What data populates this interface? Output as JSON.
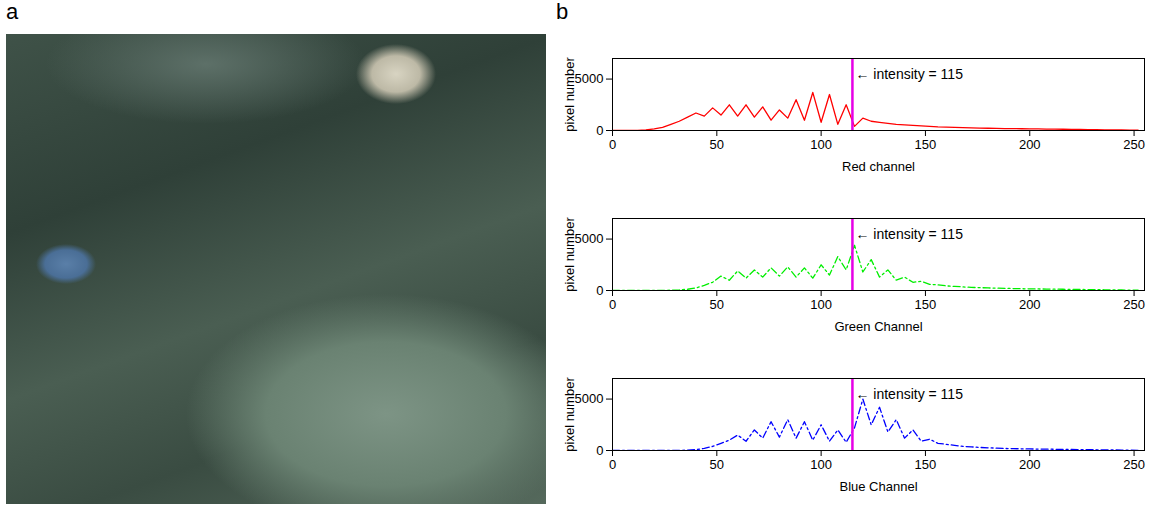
{
  "panel_labels": [
    "a",
    "b"
  ],
  "chart_data": [
    {
      "type": "line",
      "x_label": "Red channel",
      "y_label": "pixel number",
      "xlim": [
        0,
        255
      ],
      "ylim": [
        0,
        7000
      ],
      "xticks": [
        0,
        50,
        100,
        150,
        200,
        250
      ],
      "yticks": [
        0,
        5000
      ],
      "grid": false,
      "x": [
        0,
        4,
        8,
        12,
        16,
        20,
        24,
        28,
        32,
        36,
        40,
        44,
        48,
        52,
        56,
        60,
        64,
        68,
        72,
        76,
        80,
        84,
        88,
        92,
        96,
        100,
        104,
        108,
        112,
        116,
        120,
        124,
        128,
        132,
        136,
        140,
        144,
        148,
        152,
        156,
        160,
        164,
        168,
        172,
        176,
        180,
        184,
        188,
        192,
        196,
        200,
        204,
        208,
        212,
        216,
        220,
        224,
        228,
        232,
        236,
        240,
        244,
        248,
        252
      ],
      "values": [
        0,
        0,
        0,
        20,
        60,
        150,
        300,
        600,
        900,
        1300,
        1700,
        1400,
        2200,
        1500,
        2500,
        1400,
        2500,
        1300,
        2300,
        1000,
        2000,
        1200,
        3000,
        1000,
        3700,
        800,
        3500,
        600,
        2500,
        400,
        1200,
        900,
        800,
        700,
        600,
        550,
        500,
        450,
        400,
        350,
        320,
        300,
        280,
        260,
        240,
        220,
        200,
        190,
        180,
        170,
        160,
        150,
        140,
        130,
        120,
        110,
        100,
        90,
        80,
        70,
        60,
        50,
        40,
        30
      ],
      "color": "#ff0000",
      "line_style": "solid",
      "annotations": [
        {
          "x": 115,
          "text": "← intensity = 115",
          "color": "#e600e6"
        }
      ]
    },
    {
      "type": "line",
      "x_label": "Green Channel",
      "y_label": "pixel number",
      "xlim": [
        0,
        255
      ],
      "ylim": [
        0,
        7000
      ],
      "xticks": [
        0,
        50,
        100,
        150,
        200,
        250
      ],
      "yticks": [
        0,
        5000
      ],
      "grid": false,
      "x": [
        0,
        4,
        8,
        12,
        16,
        20,
        24,
        28,
        32,
        36,
        40,
        44,
        48,
        52,
        56,
        60,
        64,
        68,
        72,
        76,
        80,
        84,
        88,
        92,
        96,
        100,
        104,
        108,
        112,
        116,
        120,
        124,
        128,
        132,
        136,
        140,
        144,
        148,
        152,
        156,
        160,
        164,
        168,
        172,
        176,
        180,
        184,
        188,
        192,
        196,
        200,
        204,
        208,
        212,
        216,
        220,
        224,
        228,
        232,
        236,
        240,
        244,
        248,
        252
      ],
      "values": [
        0,
        0,
        0,
        0,
        0,
        0,
        10,
        30,
        60,
        120,
        250,
        500,
        800,
        1400,
        1000,
        1900,
        1200,
        2000,
        1300,
        2200,
        1400,
        2300,
        1300,
        2200,
        1200,
        2500,
        1500,
        3300,
        2000,
        4400,
        1800,
        3000,
        1300,
        2000,
        1000,
        1300,
        800,
        900,
        600,
        550,
        450,
        400,
        350,
        300,
        280,
        250,
        230,
        210,
        190,
        170,
        160,
        150,
        140,
        130,
        120,
        110,
        100,
        90,
        80,
        70,
        60,
        50,
        40,
        30
      ],
      "color": "#00ee00",
      "line_style": "dashdot",
      "annotations": [
        {
          "x": 115,
          "text": "← intensity = 115",
          "color": "#e600e6"
        }
      ]
    },
    {
      "type": "line",
      "x_label": "Blue Channel",
      "y_label": "pixel number",
      "xlim": [
        0,
        255
      ],
      "ylim": [
        0,
        7000
      ],
      "xticks": [
        0,
        50,
        100,
        150,
        200,
        250
      ],
      "yticks": [
        0,
        5000
      ],
      "grid": false,
      "x": [
        0,
        4,
        8,
        12,
        16,
        20,
        24,
        28,
        32,
        36,
        40,
        44,
        48,
        52,
        56,
        60,
        64,
        68,
        72,
        76,
        80,
        84,
        88,
        92,
        96,
        100,
        104,
        108,
        112,
        116,
        120,
        124,
        128,
        132,
        136,
        140,
        144,
        148,
        152,
        156,
        160,
        164,
        168,
        172,
        176,
        180,
        184,
        188,
        192,
        196,
        200,
        204,
        208,
        212,
        216,
        220,
        224,
        228,
        232,
        236,
        240,
        244,
        248,
        252
      ],
      "values": [
        0,
        0,
        0,
        0,
        0,
        0,
        0,
        0,
        10,
        30,
        80,
        200,
        400,
        700,
        1000,
        1500,
        900,
        2000,
        1200,
        2800,
        1300,
        3000,
        1200,
        2800,
        1000,
        2500,
        900,
        2000,
        800,
        2200,
        5000,
        2500,
        4200,
        1800,
        3000,
        1200,
        2000,
        900,
        1100,
        700,
        600,
        500,
        400,
        350,
        300,
        260,
        230,
        200,
        180,
        160,
        150,
        140,
        130,
        120,
        110,
        100,
        90,
        80,
        70,
        60,
        50,
        40,
        30,
        20
      ],
      "color": "#0000ff",
      "line_style": "dashdot",
      "annotations": [
        {
          "x": 115,
          "text": "← intensity = 115",
          "color": "#e600e6"
        }
      ]
    }
  ]
}
